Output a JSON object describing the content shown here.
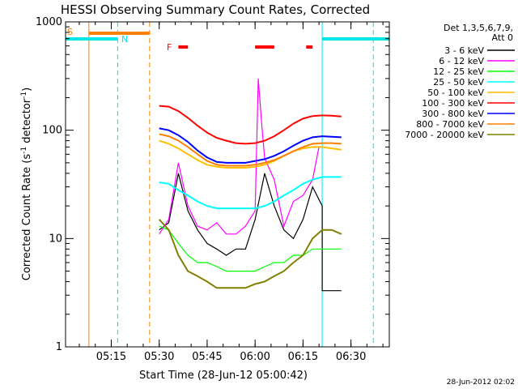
{
  "chart_data": {
    "type": "line",
    "title": "HESSI Observing Summary Count Rates, Corrected",
    "xlabel": "Start Time (28-Jun-12 05:00:42)",
    "ylabel": "Corrected Count Rate (s⁻¹ detector⁻¹)",
    "ylabel_parts": {
      "prefix": "Corrected Count Rate (s",
      "exp1": "-1",
      "mid": " detector",
      "exp2": "-1",
      "suffix": ")"
    },
    "yscale": "log",
    "xlim": [
      "05:00:42",
      "06:42:00"
    ],
    "ylim": [
      1,
      1000
    ],
    "x_ticks": [
      "05:15",
      "05:30",
      "05:45",
      "06:00",
      "06:15",
      "06:30"
    ],
    "y_ticks": [
      "1",
      "10",
      "100",
      "1000"
    ],
    "legend_header": [
      "Det 1,3,5,6,7,9,",
      "Att 0"
    ],
    "legend_position": "right",
    "date_stamp": "28-Jun-2012 02:02",
    "flags": [
      {
        "label": "S",
        "color": "#ff8000"
      },
      {
        "label": "N",
        "color": "#00e5e5"
      },
      {
        "label": "F",
        "color": "#ff0000"
      }
    ],
    "series": [
      {
        "name": "3 - 6 keV",
        "color": "#000000",
        "x": [
          "05:27",
          "05:30",
          "05:33",
          "05:36",
          "05:39",
          "05:42",
          "05:45",
          "05:48",
          "05:51",
          "05:54",
          "05:57",
          "06:00",
          "06:03",
          "06:06",
          "06:09",
          "06:12",
          "06:15",
          "06:18",
          "06:21",
          "06:21",
          "06:24",
          "06:27"
        ],
        "y": [
          0,
          12,
          14,
          40,
          18,
          12,
          9,
          8,
          7,
          8,
          8,
          15,
          40,
          20,
          12,
          10,
          15,
          30,
          20,
          3.3,
          3.3,
          3.3
        ]
      },
      {
        "name": "6 - 12 keV",
        "color": "#ff00ff",
        "x": [
          "05:27",
          "05:30",
          "05:33",
          "05:36",
          "05:39",
          "05:42",
          "05:45",
          "05:48",
          "05:51",
          "05:54",
          "05:57",
          "06:00",
          "06:01",
          "06:02",
          "06:03",
          "06:06",
          "06:09",
          "06:12",
          "06:15",
          "06:18",
          "06:20"
        ],
        "y": [
          0,
          11,
          15,
          50,
          20,
          13,
          12,
          14,
          11,
          11,
          13,
          18,
          300,
          120,
          55,
          35,
          13,
          22,
          25,
          35,
          70
        ]
      },
      {
        "name": "12 - 25 keV",
        "color": "#00ff00",
        "x": [
          "05:27",
          "05:30",
          "05:33",
          "05:36",
          "05:39",
          "05:42",
          "05:45",
          "05:48",
          "05:51",
          "05:54",
          "05:57",
          "06:00",
          "06:03",
          "06:06",
          "06:09",
          "06:12",
          "06:15",
          "06:18",
          "06:21",
          "06:24",
          "06:27"
        ],
        "y": [
          0,
          13,
          12,
          9,
          7,
          6,
          6,
          5.5,
          5,
          5,
          5,
          5,
          5.5,
          6,
          6,
          7,
          7,
          8,
          8,
          8,
          8
        ]
      },
      {
        "name": "25 - 50 keV",
        "color": "#00ffff",
        "x": [
          "05:27",
          "05:30",
          "05:33",
          "05:36",
          "05:39",
          "05:42",
          "05:45",
          "05:48",
          "05:51",
          "05:54",
          "05:57",
          "06:00",
          "06:03",
          "06:06",
          "06:09",
          "06:12",
          "06:15",
          "06:18",
          "06:21",
          "06:24",
          "06:27"
        ],
        "y": [
          0,
          33,
          32,
          28,
          25,
          22,
          20,
          19,
          19,
          19,
          19,
          19,
          20,
          22,
          25,
          28,
          32,
          35,
          37,
          37,
          37
        ]
      },
      {
        "name": "50 - 100 keV",
        "color": "#ffbf00",
        "x": [
          "05:27",
          "05:30",
          "05:33",
          "05:36",
          "05:39",
          "05:42",
          "05:45",
          "05:48",
          "05:51",
          "05:54",
          "05:57",
          "06:00",
          "06:03",
          "06:06",
          "06:09",
          "06:12",
          "06:15",
          "06:18",
          "06:21",
          "06:24",
          "06:27"
        ],
        "y": [
          0,
          80,
          75,
          68,
          60,
          53,
          48,
          46,
          45,
          45,
          45,
          46,
          48,
          52,
          58,
          64,
          68,
          70,
          70,
          68,
          66
        ]
      },
      {
        "name": "100 - 300 keV",
        "color": "#ff0000",
        "x": [
          "05:27",
          "05:30",
          "05:33",
          "05:36",
          "05:39",
          "05:42",
          "05:45",
          "05:48",
          "05:51",
          "05:54",
          "05:57",
          "06:00",
          "06:03",
          "06:06",
          "06:09",
          "06:12",
          "06:15",
          "06:18",
          "06:21",
          "06:24",
          "06:27"
        ],
        "y": [
          0,
          168,
          165,
          150,
          130,
          110,
          95,
          85,
          80,
          76,
          75,
          76,
          80,
          88,
          100,
          115,
          128,
          135,
          137,
          136,
          134
        ]
      },
      {
        "name": "300 - 800 keV",
        "color": "#0000ff",
        "x": [
          "05:27",
          "05:30",
          "05:33",
          "05:36",
          "05:39",
          "05:42",
          "05:45",
          "05:48",
          "05:51",
          "05:54",
          "05:57",
          "06:00",
          "06:03",
          "06:06",
          "06:09",
          "06:12",
          "06:15",
          "06:18",
          "06:21",
          "06:24",
          "06:27"
        ],
        "y": [
          0,
          104,
          100,
          90,
          78,
          65,
          56,
          51,
          50,
          50,
          50,
          52,
          54,
          58,
          64,
          72,
          80,
          86,
          88,
          87,
          86
        ]
      },
      {
        "name": "800 - 7000 keV",
        "color": "#ff8000",
        "x": [
          "05:27",
          "05:30",
          "05:33",
          "05:36",
          "05:39",
          "05:42",
          "05:45",
          "05:48",
          "05:51",
          "05:54",
          "05:57",
          "06:00",
          "06:03",
          "06:06",
          "06:09",
          "06:12",
          "06:15",
          "06:18",
          "06:21",
          "06:24",
          "06:27"
        ],
        "y": [
          0,
          92,
          88,
          80,
          70,
          60,
          52,
          48,
          47,
          47,
          47,
          48,
          50,
          53,
          58,
          64,
          70,
          75,
          76,
          76,
          75
        ]
      },
      {
        "name": "7000 - 20000 keV",
        "color": "#808000",
        "x": [
          "05:27",
          "05:30",
          "05:33",
          "05:36",
          "05:39",
          "05:42",
          "05:45",
          "05:48",
          "05:51",
          "05:54",
          "05:57",
          "06:00",
          "06:03",
          "06:06",
          "06:09",
          "06:12",
          "06:15",
          "06:18",
          "06:21",
          "06:24",
          "06:27"
        ],
        "y": [
          0,
          15,
          12,
          7,
          5,
          4.5,
          4,
          3.5,
          3.5,
          3.5,
          3.5,
          3.8,
          4,
          4.5,
          5,
          6,
          7,
          10,
          12,
          12,
          11
        ]
      }
    ]
  }
}
